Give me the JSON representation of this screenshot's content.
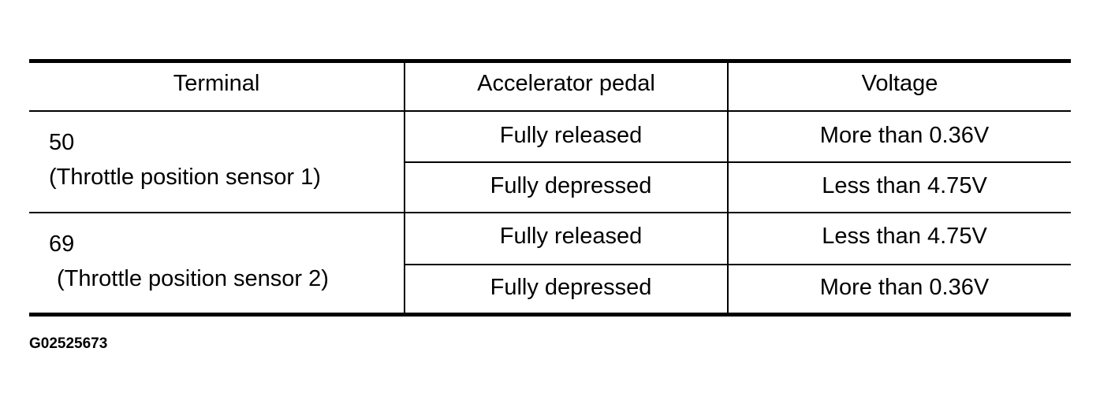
{
  "table": {
    "headers": [
      "Terminal",
      "Accelerator pedal",
      "Voltage"
    ],
    "groups": [
      {
        "terminal": "50",
        "terminal_desc": "(Throttle position sensor 1)",
        "rows": [
          {
            "pedal": "Fully released",
            "voltage": "More than 0.36V"
          },
          {
            "pedal": "Fully depressed",
            "voltage": "Less than 4.75V"
          }
        ]
      },
      {
        "terminal": "69",
        "terminal_desc": "(Throttle position sensor 2)",
        "rows": [
          {
            "pedal": "Fully released",
            "voltage": "Less than 4.75V"
          },
          {
            "pedal": "Fully depressed",
            "voltage": "More than 0.36V"
          }
        ]
      }
    ]
  },
  "figure_id": "G02525673"
}
